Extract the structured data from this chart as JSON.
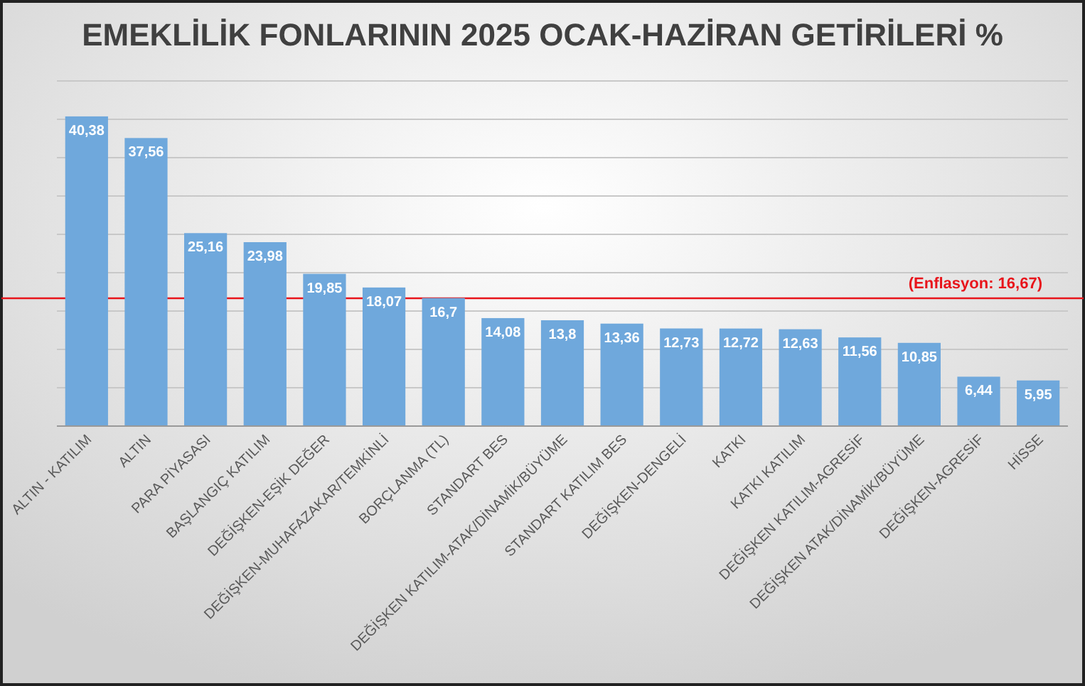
{
  "chart_data": {
    "type": "bar",
    "title": "EMEKLİLİK FONLARININ 2025 OCAK-HAZİRAN GETİRİLERİ %",
    "categories": [
      "ALTIN - KATILIM",
      "ALTIN",
      "PARA PİYASASI",
      "BAŞLANGIÇ KATILIM",
      "DEĞİŞKEN-EŞİK DEĞER",
      "DEĞİŞKEN-MUHAFAZAKAR/TEMKİNLİ",
      "BORÇLANMA (TL)",
      "STANDART BES",
      "DEĞİŞKEN KATILIM-ATAK/DİNAMİK/BÜYÜME",
      "STANDART KATILIM BES",
      "DEĞİŞKEN-DENGELİ",
      "KATKI",
      "KATKI KATILIM",
      "DEĞİŞKEN KATILIM-AGRESİF",
      "DEĞİŞKEN ATAK/DİNAMİK/BÜYÜME",
      "DEĞİŞKEN-AGRESİF",
      "HİSSE"
    ],
    "values": [
      40.38,
      37.56,
      25.16,
      23.98,
      19.85,
      18.07,
      16.7,
      14.08,
      13.8,
      13.36,
      12.73,
      12.72,
      12.63,
      11.56,
      10.85,
      6.44,
      5.95
    ],
    "value_labels": [
      "40,38",
      "37,56",
      "25,16",
      "23,98",
      "19,85",
      "18,07",
      "16,7",
      "14,08",
      "13,8",
      "13,36",
      "12,73",
      "12,72",
      "12,63",
      "11,56",
      "10,85",
      "6,44",
      "5,95"
    ],
    "color": "#6fa8dc",
    "ylim": [
      0,
      45
    ],
    "yticks": [
      {
        "value": 0,
        "label": null
      },
      {
        "value": 5,
        "label": null
      },
      {
        "value": 10,
        "label": null
      },
      {
        "value": 15,
        "label": null
      },
      {
        "value": 20,
        "label": null
      },
      {
        "value": 25,
        "label": null
      },
      {
        "value": 30,
        "label": null
      },
      {
        "value": 35,
        "label": null
      },
      {
        "value": 40,
        "label": null
      },
      {
        "value": 45,
        "label": null
      }
    ],
    "tick_labels": "x",
    "grid": "y",
    "ref_lines": [
      {
        "axis": "y",
        "value": 16.67,
        "label": "(Enflasyon: 16,67)",
        "color": "#e8141b"
      }
    ]
  }
}
